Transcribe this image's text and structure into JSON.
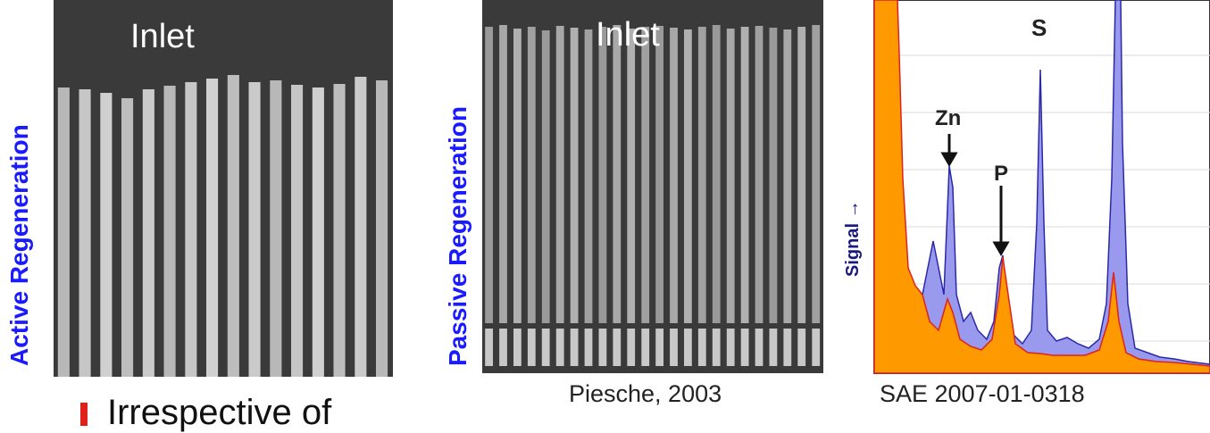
{
  "left_panel": {
    "side_label": "Active Regeneration",
    "inlet_label": "Inlet"
  },
  "middle_panel": {
    "side_label": "Passive Regeneration",
    "inlet_label": "Inlet",
    "caption": "Piesche, 2003"
  },
  "right_panel": {
    "caption": "SAE 2007-01-0318",
    "y_label": "Signal →",
    "peak_labels": {
      "zn": "Zn",
      "p": "P",
      "s": "S"
    }
  },
  "bullet": {
    "text": "Irrespective of"
  },
  "colors": {
    "label_blue": "#1a1aff",
    "fill_orange": "#ff9900",
    "fill_blue": "#9999ee",
    "bullet_red": "#e0201a"
  }
}
